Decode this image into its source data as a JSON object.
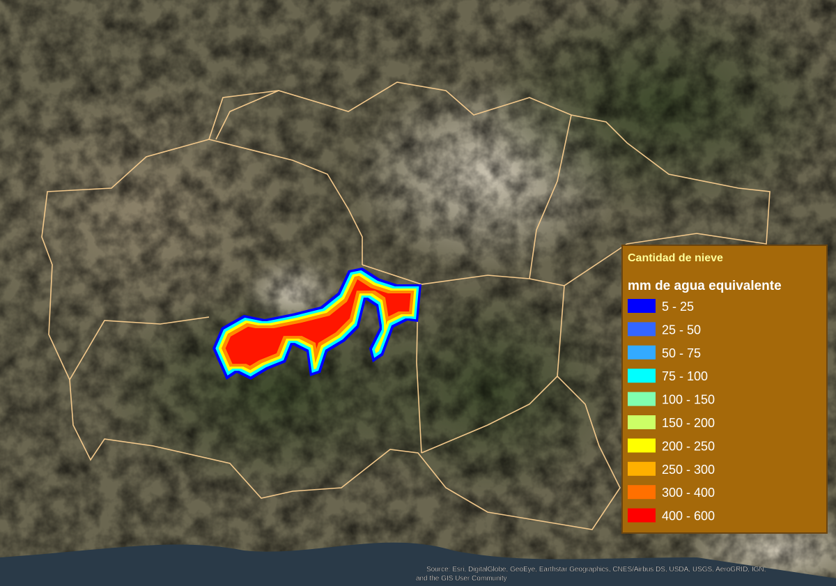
{
  "legend": {
    "title": "Cantidad de nieve",
    "subtitle": "mm de agua equivalente",
    "items": [
      {
        "label": "5 - 25",
        "color": "#0000ff"
      },
      {
        "label": "25 - 50",
        "color": "#3366ff"
      },
      {
        "label": "50 - 75",
        "color": "#33aaff"
      },
      {
        "label": "75 - 100",
        "color": "#00ffff"
      },
      {
        "label": "100 - 150",
        "color": "#80ffb0"
      },
      {
        "label": "150 - 200",
        "color": "#ccff66"
      },
      {
        "label": "200 - 250",
        "color": "#ffff00"
      },
      {
        "label": "250 - 300",
        "color": "#ffb000"
      },
      {
        "label": "300 - 400",
        "color": "#ff7000"
      },
      {
        "label": "400 - 600",
        "color": "#ff0000"
      }
    ]
  },
  "attribution": [
    "Source: Esri, DigitalGlobe, GeoEye, Earthstar Geographics, CNES/Airbus DS, USDA, USGS, AeroGRID, IGN,",
    "and the GIS User Community"
  ]
}
